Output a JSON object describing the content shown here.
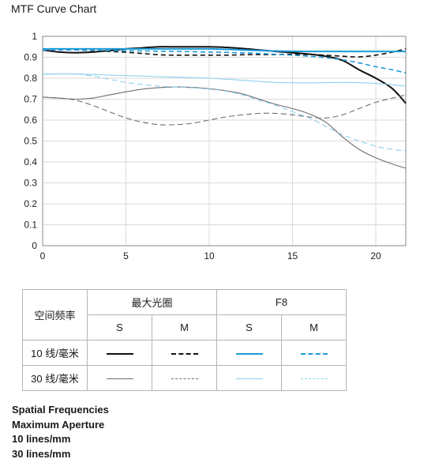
{
  "chart_title": "MTF Curve Chart",
  "colors": {
    "black": "#111111",
    "blue": "#1e9ad6",
    "gray": "#6e6e6e",
    "light_blue": "#8cd0ee",
    "grid": "#d9d9d9",
    "axis": "#888888"
  },
  "chart_data": {
    "type": "line",
    "title": "MTF Curve Chart",
    "xlabel": "",
    "ylabel": "",
    "xlim": [
      0,
      21.8
    ],
    "ylim": [
      0,
      1
    ],
    "xticks": [
      0,
      5,
      10,
      15,
      20
    ],
    "yticks": [
      0,
      0.1,
      0.2,
      0.3,
      0.4,
      0.5,
      0.6,
      0.7,
      0.8,
      0.9,
      1
    ],
    "ytick_labels": [
      "0",
      "0.1",
      "0.2",
      "0.3",
      "0.4",
      "0.5",
      "0.6",
      "0.7",
      "0.8",
      "0.9",
      "1"
    ],
    "grid": true,
    "series": [
      {
        "aperture": "max",
        "frequency": 10,
        "orientation": "S",
        "color": "black",
        "dash": false,
        "width": 2,
        "x": [
          0,
          1,
          2,
          3,
          4,
          5,
          6,
          7,
          8,
          9,
          10,
          11,
          12,
          13,
          14,
          15,
          16,
          17,
          18,
          19,
          20,
          21,
          21.8
        ],
        "y": [
          0.935,
          0.925,
          0.922,
          0.925,
          0.932,
          0.94,
          0.945,
          0.95,
          0.95,
          0.95,
          0.95,
          0.947,
          0.942,
          0.935,
          0.928,
          0.922,
          0.915,
          0.905,
          0.885,
          0.84,
          0.8,
          0.75,
          0.68
        ]
      },
      {
        "aperture": "max",
        "frequency": 10,
        "orientation": "M",
        "color": "black",
        "dash": true,
        "width": 1.6,
        "x": [
          0,
          1,
          2,
          3,
          4,
          5,
          6,
          7,
          8,
          9,
          10,
          11,
          12,
          13,
          14,
          15,
          16,
          17,
          18,
          19,
          20,
          21,
          21.8
        ],
        "y": [
          0.935,
          0.935,
          0.935,
          0.932,
          0.928,
          0.924,
          0.918,
          0.912,
          0.91,
          0.91,
          0.91,
          0.91,
          0.912,
          0.913,
          0.913,
          0.914,
          0.913,
          0.91,
          0.905,
          0.902,
          0.91,
          0.925,
          0.94
        ]
      },
      {
        "aperture": "F8",
        "frequency": 10,
        "orientation": "S",
        "color": "blue",
        "dash": false,
        "width": 2,
        "x": [
          0,
          2,
          4,
          6,
          8,
          10,
          12,
          14,
          16,
          18,
          20,
          21.8
        ],
        "y": [
          0.94,
          0.94,
          0.94,
          0.94,
          0.94,
          0.94,
          0.935,
          0.93,
          0.928,
          0.928,
          0.928,
          0.928
        ]
      },
      {
        "aperture": "F8",
        "frequency": 10,
        "orientation": "M",
        "color": "blue",
        "dash": true,
        "width": 1.6,
        "x": [
          0,
          2,
          4,
          6,
          8,
          10,
          12,
          13,
          14,
          15,
          16,
          17,
          18,
          19,
          20,
          21,
          21.8
        ],
        "y": [
          0.935,
          0.935,
          0.932,
          0.93,
          0.928,
          0.925,
          0.921,
          0.918,
          0.914,
          0.91,
          0.905,
          0.898,
          0.888,
          0.873,
          0.855,
          0.84,
          0.825
        ]
      },
      {
        "aperture": "max",
        "frequency": 30,
        "orientation": "S",
        "color": "gray",
        "dash": false,
        "width": 1.1,
        "x": [
          0,
          1,
          2,
          3,
          4,
          5,
          6,
          7,
          8,
          9,
          10,
          11,
          12,
          13,
          14,
          15,
          16,
          17,
          18,
          19,
          20,
          21,
          21.8
        ],
        "y": [
          0.71,
          0.705,
          0.7,
          0.705,
          0.72,
          0.735,
          0.748,
          0.755,
          0.758,
          0.756,
          0.75,
          0.74,
          0.725,
          0.7,
          0.675,
          0.655,
          0.63,
          0.59,
          0.52,
          0.46,
          0.42,
          0.39,
          0.37
        ]
      },
      {
        "aperture": "max",
        "frequency": 30,
        "orientation": "M",
        "color": "gray",
        "dash": true,
        "width": 1.1,
        "x": [
          0,
          1,
          2,
          3,
          4,
          5,
          6,
          7,
          8,
          9,
          10,
          11,
          12,
          13,
          14,
          15,
          16,
          17,
          18,
          19,
          20,
          21,
          21.8
        ],
        "y": [
          0.71,
          0.705,
          0.695,
          0.67,
          0.64,
          0.61,
          0.59,
          0.578,
          0.578,
          0.585,
          0.6,
          0.615,
          0.625,
          0.632,
          0.632,
          0.625,
          0.615,
          0.61,
          0.625,
          0.655,
          0.685,
          0.705,
          0.72
        ]
      },
      {
        "aperture": "F8",
        "frequency": 30,
        "orientation": "S",
        "color": "light_blue",
        "dash": false,
        "width": 1.1,
        "x": [
          0,
          2,
          4,
          6,
          8,
          10,
          12,
          14,
          16,
          18,
          20,
          21.8
        ],
        "y": [
          0.82,
          0.82,
          0.815,
          0.81,
          0.805,
          0.8,
          0.79,
          0.78,
          0.778,
          0.78,
          0.775,
          0.762
        ]
      },
      {
        "aperture": "F8",
        "frequency": 30,
        "orientation": "M",
        "color": "light_blue",
        "dash": true,
        "width": 1.1,
        "x": [
          0,
          1,
          2,
          3,
          4,
          5,
          6,
          7,
          8,
          9,
          10,
          11,
          12,
          13,
          14,
          15,
          16,
          17,
          18,
          19,
          20,
          21,
          21.8
        ],
        "y": [
          0.82,
          0.82,
          0.82,
          0.81,
          0.795,
          0.78,
          0.77,
          0.762,
          0.758,
          0.754,
          0.748,
          0.738,
          0.72,
          0.695,
          0.67,
          0.64,
          0.61,
          0.57,
          0.53,
          0.5,
          0.475,
          0.46,
          0.452
        ]
      }
    ]
  },
  "legend_table": {
    "header_freq": "空间频率",
    "header_max_aperture": "最大光圈",
    "header_f8": "F8",
    "sub_s": "S",
    "sub_m": "M",
    "row_10": "10 线/毫米",
    "row_30": "30 线/毫米"
  },
  "notes": {
    "line1": "Spatial Frequencies",
    "line2": "Maximum Aperture",
    "line3": "10 lines/mm",
    "line4": "30 lines/mm"
  }
}
